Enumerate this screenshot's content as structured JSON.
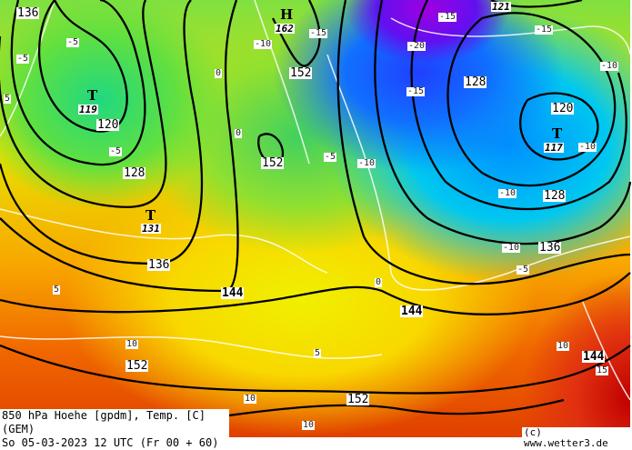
{
  "map": {
    "title": "850 hPa Hoehe [gpdm], Temp. [C] (GEM)",
    "valid_time": "So 05-03-2023 12 UTC (Fr 00 + 60)",
    "copyright": "(c) www.wetter3.de",
    "pressure_centers": [
      {
        "type": "H",
        "value": "162"
      },
      {
        "type": "T",
        "value": "119"
      },
      {
        "type": "T",
        "value": "131"
      },
      {
        "type": "T",
        "value": "117"
      },
      {
        "type": "",
        "value": "121"
      }
    ],
    "height_labels": [
      "136",
      "152",
      "120",
      "128",
      "152",
      "136",
      "144",
      "128",
      "120",
      "128",
      "136",
      "144",
      "144",
      "152",
      "152"
    ],
    "temp_labels": [
      "-5",
      "-5",
      "-10",
      "-15",
      "-5",
      "-15",
      "-20",
      "-15",
      "-10",
      "-5",
      "-10",
      "-15",
      "-10",
      "-10",
      "-10",
      "-5",
      "0",
      "0",
      "0",
      "5",
      "5",
      "5",
      "10",
      "10",
      "10",
      "10",
      "15"
    ],
    "colors": {
      "cold": "#6010f0",
      "cool": "#00c8f0",
      "mild": "#60e040",
      "warm": "#f0f000",
      "hot": "#e04000"
    }
  }
}
